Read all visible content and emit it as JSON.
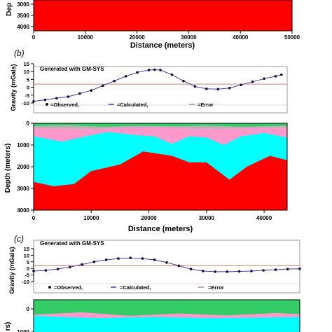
{
  "panels": [
    {
      "id": "a",
      "label": "",
      "section": {
        "ylabel": "Dep",
        "yticks": [
          3000,
          3500,
          4000
        ],
        "xticks": [
          0,
          10000,
          20000,
          30000,
          40000,
          50000
        ],
        "xlabel": "Distance (meters)"
      }
    },
    {
      "id": "b",
      "label": "(b)",
      "banner": "Generated with GM-SYS",
      "gravity": {
        "ylabel": "Gravity (mGals)",
        "yticks": [
          15,
          10,
          5,
          0,
          -5,
          -10
        ],
        "legend": [
          "=Observed,",
          "=Calculated,",
          "=Error"
        ]
      },
      "section": {
        "ylabel": "Depth (meters)",
        "yticks": [
          0,
          1000,
          2000,
          3000,
          4000
        ],
        "xticks": [
          0,
          10000,
          20000,
          30000,
          40000
        ],
        "xlabel": "Distance (meters)"
      }
    },
    {
      "id": "c",
      "label": "(c)",
      "banner": "Generated with GM-SYS",
      "gravity": {
        "ylabel": "Gravity (mGals)",
        "yticks": [
          15,
          10,
          5,
          0,
          -5,
          -10
        ],
        "legend": [
          "=Observed,",
          "=Calculated,",
          "=Error"
        ]
      },
      "section": {
        "ylabel": "rs)",
        "yticks": [
          0,
          1000
        ]
      }
    }
  ],
  "colors": {
    "basement": "#ff0000",
    "cyan_layer": "#00ffff",
    "pink_layer": "#ff99cc",
    "green_layer": "#33cc66",
    "gray_layer": "#b3b3b3",
    "calculated": "#3f3fa8",
    "error_line": "#cc8877",
    "observed": "#111133"
  },
  "chart_data": [
    {
      "type": "line",
      "panel": "b",
      "series": [
        {
          "name": "Observed",
          "x": [
            0,
            2000,
            4000,
            6000,
            8000,
            10000,
            12000,
            14000,
            16000,
            18000,
            20000,
            21000,
            22000,
            24000,
            26000,
            28000,
            30000,
            32000,
            34000,
            36000,
            38000,
            40000,
            42000,
            43000
          ],
          "y": [
            -9,
            -8,
            -7,
            -6,
            -4,
            -2,
            1,
            4,
            7,
            9.5,
            11,
            11.2,
            11,
            8,
            4,
            0.5,
            -1,
            -1.2,
            -0.5,
            1.5,
            3.5,
            5.5,
            7,
            8
          ]
        },
        {
          "name": "Calculated",
          "x": [
            0,
            2000,
            4000,
            6000,
            8000,
            10000,
            12000,
            14000,
            16000,
            18000,
            20000,
            21000,
            22000,
            24000,
            26000,
            28000,
            30000,
            32000,
            34000,
            36000,
            38000,
            40000,
            42000,
            43000
          ],
          "y": [
            -9,
            -8,
            -7,
            -6,
            -4,
            -2,
            1,
            4,
            7,
            9.5,
            11,
            11.2,
            11,
            8,
            4,
            0.5,
            -1,
            -1.2,
            -0.5,
            1.5,
            3.5,
            5.5,
            7,
            8
          ]
        },
        {
          "name": "Error",
          "x": [
            0,
            44000
          ],
          "y": [
            2,
            2
          ]
        }
      ],
      "ylim": [
        -10,
        15
      ],
      "xlim": [
        0,
        44000
      ]
    },
    {
      "type": "line",
      "panel": "c",
      "series": [
        {
          "name": "Observed",
          "x": [
            0,
            2000,
            4000,
            6000,
            8000,
            10000,
            12000,
            14000,
            16000,
            18000,
            20000,
            22000,
            24000,
            26000,
            28000,
            30000,
            32000,
            34000,
            36000,
            38000,
            40000,
            42000,
            44000
          ],
          "y": [
            -2,
            -1.5,
            -0.5,
            1,
            3,
            5,
            6.5,
            7.5,
            8,
            7.5,
            6.5,
            4.5,
            2,
            -0.5,
            -2,
            -2.5,
            -2.5,
            -2.3,
            -2,
            -1.5,
            -1,
            -0.5,
            -0.3
          ]
        },
        {
          "name": "Calculated",
          "x": [
            0,
            2000,
            4000,
            6000,
            8000,
            10000,
            12000,
            14000,
            16000,
            18000,
            20000,
            22000,
            24000,
            26000,
            28000,
            30000,
            32000,
            34000,
            36000,
            38000,
            40000,
            42000,
            44000
          ],
          "y": [
            -2,
            -1.5,
            -0.5,
            1,
            3,
            5,
            6.5,
            7.5,
            8,
            7.5,
            6.5,
            4.5,
            2,
            -0.5,
            -2,
            -2.5,
            -2.5,
            -2.3,
            -2,
            -1.5,
            -1,
            -0.5,
            -0.3
          ]
        },
        {
          "name": "Error",
          "x": [
            0,
            44000
          ],
          "y": [
            2,
            2
          ]
        }
      ],
      "ylim": [
        -10,
        15
      ],
      "xlim": [
        0,
        44000
      ]
    },
    {
      "type": "area",
      "panel": "b",
      "xlim": [
        0,
        44000
      ],
      "ylim_depth": [
        0,
        4000
      ],
      "layers": [
        {
          "name": "basement-top",
          "x": [
            0,
            3500,
            7000,
            10000,
            15000,
            19000,
            24000,
            27000,
            30000,
            34000,
            37000,
            41000,
            44000
          ],
          "depth": [
            2700,
            2900,
            2800,
            2200,
            1900,
            1300,
            1500,
            1800,
            1800,
            2600,
            2000,
            1500,
            1700
          ]
        },
        {
          "name": "cyan-top",
          "x": [
            0,
            5000,
            9000,
            13000,
            18000,
            21000,
            24000,
            27000,
            30000,
            33000,
            36000,
            40000,
            44000
          ],
          "depth": [
            600,
            850,
            600,
            400,
            550,
            600,
            950,
            600,
            650,
            1000,
            600,
            450,
            650
          ]
        },
        {
          "name": "pink-top",
          "x": [
            0,
            10000,
            20000,
            30000,
            44000
          ],
          "depth": [
            220,
            250,
            180,
            250,
            200
          ]
        }
      ]
    },
    {
      "type": "area",
      "panel": "c",
      "xlim": [
        0,
        44000
      ],
      "layers": [
        {
          "name": "cyan-top",
          "x": [
            0,
            8000,
            16000,
            22000,
            26000,
            33000,
            37000,
            44000
          ],
          "depth": [
            700,
            600,
            650,
            900,
            700,
            750,
            650,
            700
          ]
        },
        {
          "name": "pink-top",
          "x": [
            0,
            10000,
            20000,
            30000,
            44000
          ],
          "depth": [
            300,
            400,
            350,
            400,
            350
          ]
        }
      ]
    }
  ]
}
